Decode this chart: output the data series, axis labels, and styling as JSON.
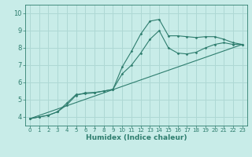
{
  "title": "",
  "xlabel": "Humidex (Indice chaleur)",
  "ylabel": "",
  "bg_color": "#c8ece8",
  "grid_color": "#aed8d4",
  "line_color": "#2e7d6e",
  "xlim": [
    -0.5,
    23.5
  ],
  "ylim": [
    3.5,
    10.5
  ],
  "yticks": [
    4,
    5,
    6,
    7,
    8,
    9,
    10
  ],
  "xticks": [
    0,
    1,
    2,
    3,
    4,
    5,
    6,
    7,
    8,
    9,
    10,
    11,
    12,
    13,
    14,
    15,
    16,
    17,
    18,
    19,
    20,
    21,
    22,
    23
  ],
  "series1_x": [
    0,
    1,
    2,
    3,
    4,
    5,
    6,
    7,
    8,
    9,
    10,
    11,
    12,
    13,
    14,
    15,
    16,
    17,
    18,
    19,
    20,
    21,
    22,
    23
  ],
  "series1_y": [
    3.9,
    4.0,
    4.1,
    4.3,
    4.7,
    5.25,
    5.4,
    5.42,
    5.5,
    5.6,
    6.9,
    7.8,
    8.8,
    9.55,
    9.65,
    8.7,
    8.7,
    8.65,
    8.6,
    8.65,
    8.65,
    8.5,
    8.3,
    8.2
  ],
  "series2_x": [
    0,
    1,
    2,
    3,
    4,
    5,
    6,
    7,
    8,
    9,
    10,
    11,
    12,
    13,
    14,
    15,
    16,
    17,
    18,
    19,
    20,
    21,
    22,
    23
  ],
  "series2_y": [
    3.9,
    4.0,
    4.1,
    4.3,
    4.8,
    5.3,
    5.35,
    5.4,
    5.5,
    5.6,
    6.5,
    7.0,
    7.7,
    8.5,
    9.0,
    8.0,
    7.7,
    7.65,
    7.75,
    8.0,
    8.2,
    8.3,
    8.2,
    8.2
  ],
  "series3_x": [
    0,
    23
  ],
  "series3_y": [
    3.9,
    8.2
  ],
  "xlabel_fontsize": 6.5,
  "tick_fontsize_x": 5.0,
  "tick_fontsize_y": 6.0
}
